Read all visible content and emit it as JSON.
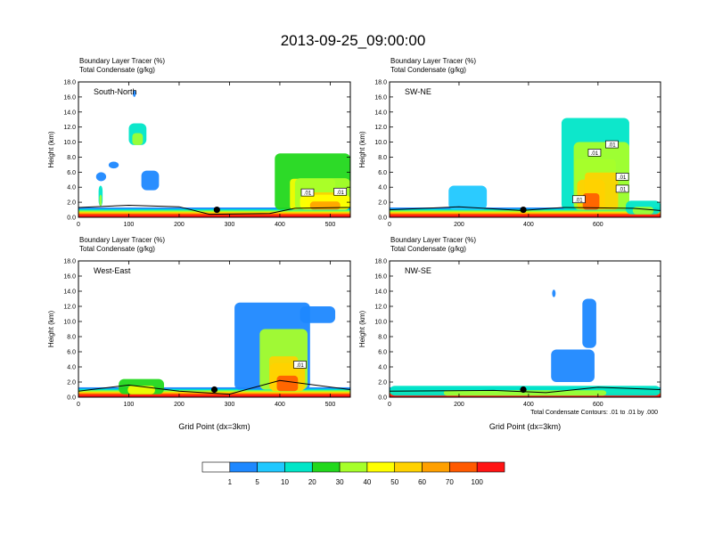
{
  "chart_data": {
    "type": "contour-panels",
    "title": "2013-09-25_09:00:00",
    "panels": [
      {
        "name": "south-north",
        "label": "South-North",
        "subtitle1": "Boundary Layer Tracer   (%)",
        "subtitle2": "Total Condensate   (g/kg)",
        "ylabel": "Height (km)",
        "xlabel": "",
        "xlim": [
          0,
          540
        ],
        "xticks": [
          0,
          100,
          200,
          300,
          400,
          500
        ],
        "ylim": [
          0,
          18
        ],
        "yticks": [
          0.0,
          2.0,
          4.0,
          6.0,
          8.0,
          10.0,
          12.0,
          14.0,
          16.0,
          18.0
        ],
        "marker_x": 275,
        "contour_labels": [
          {
            "x": 455,
            "y": 3.3,
            "text": ".01"
          },
          {
            "x": 520,
            "y": 3.4,
            "text": ".01"
          }
        ],
        "plumes": [
          {
            "x0": 100,
            "x1": 135,
            "ybot": 9.6,
            "ytop": 12.5,
            "level": 3
          },
          {
            "x0": 35,
            "x1": 55,
            "ybot": 4.8,
            "ytop": 6.0,
            "level": 1
          },
          {
            "x0": 40,
            "x1": 48,
            "ybot": 1.5,
            "ytop": 4.2,
            "level": 3
          },
          {
            "x0": 60,
            "x1": 80,
            "ybot": 6.5,
            "ytop": 7.4,
            "level": 1
          },
          {
            "x0": 125,
            "x1": 160,
            "ybot": 3.6,
            "ytop": 6.2,
            "level": 1
          },
          {
            "x0": 108,
            "x1": 114,
            "ybot": 16.0,
            "ytop": 16.9,
            "level": 1
          },
          {
            "x0": 390,
            "x1": 540,
            "ybot": 1.0,
            "ytop": 8.5,
            "level": 4
          },
          {
            "x0": 430,
            "x1": 540,
            "ybot": 1.0,
            "ytop": 5.2,
            "level": 5
          },
          {
            "x0": 440,
            "x1": 540,
            "ybot": 1.0,
            "ytop": 3.0,
            "level": 6
          }
        ],
        "blh": [
          [
            0,
            1.3
          ],
          [
            100,
            1.6
          ],
          [
            200,
            1.4
          ],
          [
            260,
            0.4
          ],
          [
            380,
            0.5
          ],
          [
            430,
            1.2
          ],
          [
            540,
            1.3
          ]
        ]
      },
      {
        "name": "sw-ne",
        "label": "SW-NE",
        "subtitle1": "Boundary Layer Tracer   (%)",
        "subtitle2": "Total Condensate   (g/kg)",
        "ylabel": "Height (km)",
        "xlabel": "",
        "xlim": [
          0,
          780
        ],
        "xticks": [
          0,
          200,
          400,
          600
        ],
        "ylim": [
          0,
          18
        ],
        "yticks": [
          0.0,
          2.0,
          4.0,
          6.0,
          8.0,
          10.0,
          12.0,
          14.0,
          16.0,
          18.0
        ],
        "marker_x": 385,
        "contour_labels": [
          {
            "x": 640,
            "y": 9.7,
            "text": ".01"
          },
          {
            "x": 590,
            "y": 8.6,
            "text": ".01"
          },
          {
            "x": 670,
            "y": 5.4,
            "text": ".01"
          },
          {
            "x": 670,
            "y": 3.8,
            "text": ".01"
          },
          {
            "x": 545,
            "y": 2.4,
            "text": ".01"
          }
        ],
        "plumes": [
          {
            "x0": 170,
            "x1": 280,
            "ybot": 1.0,
            "ytop": 4.2,
            "level": 2
          },
          {
            "x0": 495,
            "x1": 690,
            "ybot": 1.0,
            "ytop": 13.2,
            "level": 3
          },
          {
            "x0": 530,
            "x1": 690,
            "ybot": 1.0,
            "ytop": 10.0,
            "level": 5
          },
          {
            "x0": 540,
            "x1": 620,
            "ybot": 1.0,
            "ytop": 5.0,
            "level": 7
          },
          {
            "x0": 680,
            "x1": 780,
            "ybot": 0.4,
            "ytop": 2.2,
            "level": 3
          }
        ],
        "blh": [
          [
            0,
            1.0
          ],
          [
            200,
            1.4
          ],
          [
            380,
            0.9
          ],
          [
            500,
            1.3
          ],
          [
            700,
            1.2
          ],
          [
            780,
            0.9
          ]
        ]
      },
      {
        "name": "west-east",
        "label": "West-East",
        "subtitle1": "Boundary Layer Tracer   (%)",
        "subtitle2": "Total Condensate   (g/kg)",
        "ylabel": "Height (km)",
        "xlabel": "Grid Point (dx=3km)",
        "xlim": [
          0,
          540
        ],
        "xticks": [
          0,
          100,
          200,
          300,
          400,
          500
        ],
        "ylim": [
          0,
          18
        ],
        "yticks": [
          0.0,
          2.0,
          4.0,
          6.0,
          8.0,
          10.0,
          12.0,
          14.0,
          16.0,
          18.0
        ],
        "marker_x": 270,
        "contour_labels": [
          {
            "x": 440,
            "y": 4.3,
            "text": ".01"
          }
        ],
        "plumes": [
          {
            "x0": 80,
            "x1": 170,
            "ybot": 0.4,
            "ytop": 2.4,
            "level": 4
          },
          {
            "x0": 310,
            "x1": 460,
            "ybot": 1.0,
            "ytop": 12.5,
            "level": 1
          },
          {
            "x0": 440,
            "x1": 510,
            "ybot": 9.8,
            "ytop": 12.0,
            "level": 1
          },
          {
            "x0": 360,
            "x1": 455,
            "ybot": 1.0,
            "ytop": 9.0,
            "level": 5
          },
          {
            "x0": 380,
            "x1": 450,
            "ybot": 0.8,
            "ytop": 4.5,
            "level": 7
          }
        ],
        "blh": [
          [
            0,
            0.8
          ],
          [
            100,
            1.6
          ],
          [
            200,
            0.8
          ],
          [
            300,
            0.4
          ],
          [
            400,
            2.2
          ],
          [
            540,
            1.0
          ]
        ]
      },
      {
        "name": "nw-se",
        "label": "NW-SE",
        "subtitle1": "Boundary Layer Tracer   (%)",
        "subtitle2": "Total Condensate   (g/kg)",
        "ylabel": "Height (km)",
        "xlabel": "Grid Point (dx=3km)",
        "xlim": [
          0,
          780
        ],
        "xticks": [
          0,
          200,
          400,
          600
        ],
        "ylim": [
          0,
          18
        ],
        "yticks": [
          0.0,
          2.0,
          4.0,
          6.0,
          8.0,
          10.0,
          12.0,
          14.0,
          16.0,
          18.0
        ],
        "marker_x": 385,
        "contour_labels": [],
        "plumes": [
          {
            "x0": 465,
            "x1": 590,
            "ybot": 2.0,
            "ytop": 6.3,
            "level": 1
          },
          {
            "x0": 555,
            "x1": 595,
            "ybot": 6.5,
            "ytop": 13.0,
            "level": 1
          },
          {
            "x0": 468,
            "x1": 478,
            "ybot": 13.2,
            "ytop": 14.2,
            "level": 1
          },
          {
            "x0": 0,
            "x1": 780,
            "ybot": 0.2,
            "ytop": 1.5,
            "level": 3
          }
        ],
        "blh": [
          [
            0,
            0.8
          ],
          [
            300,
            0.9
          ],
          [
            450,
            0.6
          ],
          [
            600,
            1.3
          ],
          [
            780,
            1.0
          ]
        ]
      }
    ],
    "footnote": "Total Condensate Contours: .01 to .01 by .000",
    "colorbar": {
      "labels": [
        "1",
        "5",
        "10",
        "20",
        "30",
        "40",
        "50",
        "60",
        "70",
        "100"
      ],
      "colors": [
        "#ffffff",
        "#1e88ff",
        "#20c8ff",
        "#00e6c8",
        "#22d81c",
        "#a6ff2a",
        "#ffff00",
        "#ffd200",
        "#ffa000",
        "#ff5a00",
        "#ff1414"
      ]
    }
  }
}
